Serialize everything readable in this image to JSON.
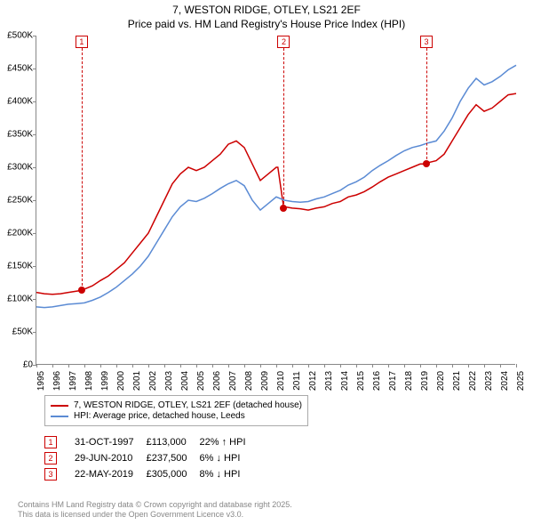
{
  "title_line1": "7, WESTON RIDGE, OTLEY, LS21 2EF",
  "title_line2": "Price paid vs. HM Land Registry's House Price Index (HPI)",
  "chart": {
    "type": "line",
    "x_years": [
      1995,
      1996,
      1997,
      1998,
      1999,
      2000,
      2001,
      2002,
      2003,
      2004,
      2005,
      2006,
      2007,
      2008,
      2009,
      2010,
      2011,
      2012,
      2013,
      2014,
      2015,
      2016,
      2017,
      2018,
      2019,
      2020,
      2021,
      2022,
      2023,
      2024,
      2025
    ],
    "xlim": [
      1995,
      2025
    ],
    "ylim": [
      0,
      500000
    ],
    "ytick_step": 50000,
    "yticks": [
      0,
      50000,
      100000,
      150000,
      200000,
      250000,
      300000,
      350000,
      400000,
      450000,
      500000
    ],
    "ytick_labels": [
      "£0",
      "£50K",
      "£100K",
      "£150K",
      "£200K",
      "£250K",
      "£300K",
      "£350K",
      "£400K",
      "£450K",
      "£500K"
    ],
    "background_color": "#ffffff",
    "grid_on": false,
    "series": [
      {
        "name": "price_paid",
        "label": "7, WESTON RIDGE, OTLEY, LS21 2EF (detached house)",
        "color": "#cc0000",
        "line_width": 1.5,
        "data": [
          [
            1995,
            110000
          ],
          [
            1995.5,
            108000
          ],
          [
            1996,
            107000
          ],
          [
            1996.5,
            108000
          ],
          [
            1997,
            110000
          ],
          [
            1997.8,
            113000
          ],
          [
            1998,
            115000
          ],
          [
            1998.5,
            120000
          ],
          [
            1999,
            128000
          ],
          [
            1999.5,
            135000
          ],
          [
            2000,
            145000
          ],
          [
            2000.5,
            155000
          ],
          [
            2001,
            170000
          ],
          [
            2001.5,
            185000
          ],
          [
            2002,
            200000
          ],
          [
            2002.5,
            225000
          ],
          [
            2003,
            250000
          ],
          [
            2003.5,
            275000
          ],
          [
            2004,
            290000
          ],
          [
            2004.5,
            300000
          ],
          [
            2005,
            295000
          ],
          [
            2005.5,
            300000
          ],
          [
            2006,
            310000
          ],
          [
            2006.5,
            320000
          ],
          [
            2007,
            335000
          ],
          [
            2007.5,
            340000
          ],
          [
            2008,
            330000
          ],
          [
            2008.5,
            305000
          ],
          [
            2009,
            280000
          ],
          [
            2009.5,
            290000
          ],
          [
            2010,
            300000
          ],
          [
            2010.1,
            300000
          ],
          [
            2010.47,
            237500
          ],
          [
            2010.5,
            240000
          ],
          [
            2011,
            238000
          ],
          [
            2011.5,
            237000
          ],
          [
            2012,
            235000
          ],
          [
            2012.5,
            238000
          ],
          [
            2013,
            240000
          ],
          [
            2013.5,
            245000
          ],
          [
            2014,
            248000
          ],
          [
            2014.5,
            255000
          ],
          [
            2015,
            258000
          ],
          [
            2015.5,
            263000
          ],
          [
            2016,
            270000
          ],
          [
            2016.5,
            278000
          ],
          [
            2017,
            285000
          ],
          [
            2017.5,
            290000
          ],
          [
            2018,
            295000
          ],
          [
            2018.5,
            300000
          ],
          [
            2019,
            305000
          ],
          [
            2019.4,
            305000
          ],
          [
            2019.5,
            307000
          ],
          [
            2020,
            310000
          ],
          [
            2020.5,
            320000
          ],
          [
            2021,
            340000
          ],
          [
            2021.5,
            360000
          ],
          [
            2022,
            380000
          ],
          [
            2022.5,
            395000
          ],
          [
            2023,
            385000
          ],
          [
            2023.5,
            390000
          ],
          [
            2024,
            400000
          ],
          [
            2024.5,
            410000
          ],
          [
            2025,
            412000
          ]
        ]
      },
      {
        "name": "hpi",
        "label": "HPI: Average price, detached house, Leeds",
        "color": "#5b8bd4",
        "line_width": 1.5,
        "data": [
          [
            1995,
            88000
          ],
          [
            1995.5,
            87000
          ],
          [
            1996,
            88000
          ],
          [
            1996.5,
            90000
          ],
          [
            1997,
            92000
          ],
          [
            1997.5,
            93000
          ],
          [
            1998,
            94000
          ],
          [
            1998.5,
            98000
          ],
          [
            1999,
            103000
          ],
          [
            1999.5,
            110000
          ],
          [
            2000,
            118000
          ],
          [
            2000.5,
            128000
          ],
          [
            2001,
            138000
          ],
          [
            2001.5,
            150000
          ],
          [
            2002,
            165000
          ],
          [
            2002.5,
            185000
          ],
          [
            2003,
            205000
          ],
          [
            2003.5,
            225000
          ],
          [
            2004,
            240000
          ],
          [
            2004.5,
            250000
          ],
          [
            2005,
            248000
          ],
          [
            2005.5,
            253000
          ],
          [
            2006,
            260000
          ],
          [
            2006.5,
            268000
          ],
          [
            2007,
            275000
          ],
          [
            2007.5,
            280000
          ],
          [
            2008,
            272000
          ],
          [
            2008.5,
            250000
          ],
          [
            2009,
            235000
          ],
          [
            2009.5,
            245000
          ],
          [
            2010,
            255000
          ],
          [
            2010.5,
            250000
          ],
          [
            2011,
            248000
          ],
          [
            2011.5,
            247000
          ],
          [
            2012,
            248000
          ],
          [
            2012.5,
            252000
          ],
          [
            2013,
            255000
          ],
          [
            2013.5,
            260000
          ],
          [
            2014,
            265000
          ],
          [
            2014.5,
            273000
          ],
          [
            2015,
            278000
          ],
          [
            2015.5,
            285000
          ],
          [
            2016,
            295000
          ],
          [
            2016.5,
            303000
          ],
          [
            2017,
            310000
          ],
          [
            2017.5,
            318000
          ],
          [
            2018,
            325000
          ],
          [
            2018.5,
            330000
          ],
          [
            2019,
            333000
          ],
          [
            2019.5,
            337000
          ],
          [
            2020,
            340000
          ],
          [
            2020.5,
            355000
          ],
          [
            2021,
            375000
          ],
          [
            2021.5,
            400000
          ],
          [
            2022,
            420000
          ],
          [
            2022.5,
            435000
          ],
          [
            2023,
            425000
          ],
          [
            2023.5,
            430000
          ],
          [
            2024,
            438000
          ],
          [
            2024.5,
            448000
          ],
          [
            2025,
            455000
          ]
        ]
      }
    ],
    "markers": [
      {
        "id": "1",
        "year": 1997.83,
        "price": 113000,
        "color": "#cc0000"
      },
      {
        "id": "2",
        "year": 2010.47,
        "price": 237500,
        "color": "#cc0000"
      },
      {
        "id": "3",
        "year": 2019.39,
        "price": 305000,
        "color": "#cc0000"
      }
    ]
  },
  "legend": {
    "items": [
      {
        "color": "#cc0000",
        "label": "7, WESTON RIDGE, OTLEY, LS21 2EF (detached house)"
      },
      {
        "color": "#5b8bd4",
        "label": "HPI: Average price, detached house, Leeds"
      }
    ]
  },
  "events": [
    {
      "id": "1",
      "color": "#cc0000",
      "date": "31-OCT-1997",
      "price": "£113,000",
      "delta": "22% ↑ HPI"
    },
    {
      "id": "2",
      "color": "#cc0000",
      "date": "29-JUN-2010",
      "price": "£237,500",
      "delta": "6% ↓ HPI"
    },
    {
      "id": "3",
      "color": "#cc0000",
      "date": "22-MAY-2019",
      "price": "£305,000",
      "delta": "8% ↓ HPI"
    }
  ],
  "footer_line1": "Contains HM Land Registry data © Crown copyright and database right 2025.",
  "footer_line2": "This data is licensed under the Open Government Licence v3.0."
}
